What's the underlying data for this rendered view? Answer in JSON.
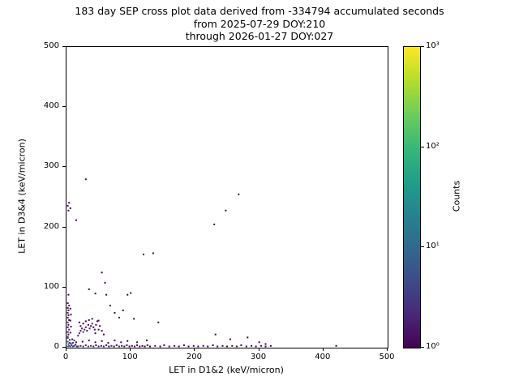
{
  "chart_data": {
    "type": "scatter",
    "title": "183 day SEP cross plot data derived from -334794 accumulated seconds",
    "subtitle1": "from 2025-07-29 DOY:210",
    "subtitle2": "through 2026-01-27 DOY:027",
    "xlabel": "LET in D1&2 (keV/micron)",
    "ylabel": "LET in D3&4 (keV/micron)",
    "xlim": [
      0,
      500
    ],
    "ylim": [
      0,
      500
    ],
    "x_ticks": [
      0,
      100,
      200,
      300,
      400,
      500
    ],
    "y_ticks": [
      0,
      100,
      200,
      300,
      400,
      500
    ],
    "grid": false,
    "colorbar": {
      "label": "Counts",
      "scale": "log",
      "range": [
        1,
        1000
      ],
      "colormap": "viridis",
      "color_bottom": "#440154",
      "color_top": "#fde725",
      "ticks": [
        {
          "label": "10⁰",
          "value": 1
        },
        {
          "label": "10¹",
          "value": 10
        },
        {
          "label": "10²",
          "value": 100
        },
        {
          "label": "10³",
          "value": 1000
        }
      ]
    },
    "points": [
      [
        2,
        2,
        8
      ],
      [
        4,
        3,
        6
      ],
      [
        6,
        2,
        5
      ],
      [
        8,
        4,
        4
      ],
      [
        3,
        6,
        5
      ],
      [
        5,
        8,
        4
      ],
      [
        2,
        10,
        3
      ],
      [
        10,
        2,
        4
      ],
      [
        12,
        3,
        3
      ],
      [
        7,
        7,
        3
      ],
      [
        10,
        8,
        2
      ],
      [
        14,
        5,
        2
      ],
      [
        5,
        13,
        2
      ],
      [
        12,
        12,
        2
      ],
      [
        15,
        9,
        1
      ],
      [
        9,
        14,
        1
      ],
      [
        16,
        2,
        2
      ],
      [
        2,
        16,
        2
      ],
      [
        2,
        18,
        2
      ],
      [
        3,
        22,
        1
      ],
      [
        2,
        26,
        1
      ],
      [
        4,
        30,
        2
      ],
      [
        2,
        34,
        1
      ],
      [
        3,
        38,
        1
      ],
      [
        2,
        42,
        2
      ],
      [
        4,
        46,
        1
      ],
      [
        2,
        50,
        1
      ],
      [
        3,
        54,
        1
      ],
      [
        2,
        58,
        2
      ],
      [
        3,
        62,
        1
      ],
      [
        2,
        66,
        1
      ],
      [
        4,
        70,
        1
      ],
      [
        2,
        74,
        1
      ],
      [
        6,
        25,
        1
      ],
      [
        7,
        35,
        1
      ],
      [
        6,
        45,
        1
      ],
      [
        7,
        55,
        1
      ],
      [
        6,
        65,
        1
      ],
      [
        3,
        88,
        1
      ],
      [
        3,
        228,
        1
      ],
      [
        6,
        232,
        1
      ],
      [
        2,
        236,
        1
      ],
      [
        4,
        241,
        1
      ],
      [
        15,
        212,
        1
      ],
      [
        30,
        280,
        1
      ],
      [
        18,
        2,
        3
      ],
      [
        22,
        3,
        2
      ],
      [
        26,
        2,
        2
      ],
      [
        30,
        4,
        2
      ],
      [
        34,
        2,
        3
      ],
      [
        38,
        3,
        2
      ],
      [
        42,
        2,
        2
      ],
      [
        46,
        4,
        1
      ],
      [
        50,
        2,
        2
      ],
      [
        54,
        3,
        1
      ],
      [
        58,
        2,
        2
      ],
      [
        62,
        4,
        1
      ],
      [
        66,
        2,
        1
      ],
      [
        70,
        3,
        2
      ],
      [
        74,
        2,
        1
      ],
      [
        78,
        4,
        1
      ],
      [
        82,
        2,
        2
      ],
      [
        86,
        3,
        1
      ],
      [
        90,
        2,
        1
      ],
      [
        94,
        4,
        1
      ],
      [
        98,
        2,
        1
      ],
      [
        102,
        3,
        1
      ],
      [
        106,
        2,
        1
      ],
      [
        110,
        4,
        1
      ],
      [
        114,
        2,
        1
      ],
      [
        118,
        3,
        1
      ],
      [
        122,
        2,
        1
      ],
      [
        126,
        4,
        1
      ],
      [
        130,
        2,
        1
      ],
      [
        138,
        3,
        1
      ],
      [
        146,
        2,
        1
      ],
      [
        152,
        4,
        1
      ],
      [
        160,
        2,
        1
      ],
      [
        168,
        3,
        1
      ],
      [
        175,
        2,
        1
      ],
      [
        183,
        4,
        1
      ],
      [
        190,
        2,
        1
      ],
      [
        198,
        3,
        1
      ],
      [
        205,
        2,
        1
      ],
      [
        213,
        3,
        1
      ],
      [
        220,
        2,
        1
      ],
      [
        228,
        4,
        1
      ],
      [
        235,
        2,
        1
      ],
      [
        243,
        3,
        1
      ],
      [
        250,
        2,
        1
      ],
      [
        258,
        3,
        1
      ],
      [
        265,
        2,
        1
      ],
      [
        272,
        4,
        1
      ],
      [
        280,
        2,
        1
      ],
      [
        288,
        3,
        1
      ],
      [
        295,
        2,
        1
      ],
      [
        303,
        3,
        1
      ],
      [
        310,
        2,
        1
      ],
      [
        318,
        3,
        1
      ],
      [
        420,
        3,
        1
      ],
      [
        232,
        22,
        1
      ],
      [
        255,
        14,
        1
      ],
      [
        282,
        17,
        1
      ],
      [
        300,
        9,
        1
      ],
      [
        310,
        6,
        1
      ],
      [
        18,
        20,
        2
      ],
      [
        20,
        24,
        2
      ],
      [
        22,
        28,
        1
      ],
      [
        24,
        32,
        2
      ],
      [
        26,
        26,
        3
      ],
      [
        28,
        30,
        2
      ],
      [
        30,
        34,
        2
      ],
      [
        32,
        28,
        1
      ],
      [
        34,
        38,
        1
      ],
      [
        36,
        32,
        2
      ],
      [
        38,
        36,
        1
      ],
      [
        40,
        40,
        2
      ],
      [
        42,
        34,
        1
      ],
      [
        44,
        30,
        1
      ],
      [
        46,
        38,
        1
      ],
      [
        48,
        44,
        1
      ],
      [
        30,
        44,
        1
      ],
      [
        26,
        40,
        1
      ],
      [
        22,
        36,
        1
      ],
      [
        20,
        42,
        1
      ],
      [
        35,
        46,
        1
      ],
      [
        40,
        48,
        1
      ],
      [
        45,
        24,
        1
      ],
      [
        50,
        30,
        1
      ],
      [
        52,
        36,
        1
      ],
      [
        55,
        28,
        1
      ],
      [
        58,
        22,
        1
      ],
      [
        50,
        45,
        1
      ],
      [
        25,
        10,
        1
      ],
      [
        35,
        12,
        1
      ],
      [
        45,
        9,
        1
      ],
      [
        55,
        11,
        1
      ],
      [
        65,
        8,
        1
      ],
      [
        75,
        12,
        1
      ],
      [
        85,
        9,
        1
      ],
      [
        95,
        11,
        1
      ],
      [
        110,
        9,
        1
      ],
      [
        125,
        12,
        1
      ],
      [
        55,
        125,
        1
      ],
      [
        60,
        108,
        1
      ],
      [
        35,
        97,
        1
      ],
      [
        45,
        90,
        1
      ],
      [
        62,
        88,
        1
      ],
      [
        88,
        62,
        1
      ],
      [
        95,
        88,
        1
      ],
      [
        100,
        91,
        1
      ],
      [
        120,
        155,
        1
      ],
      [
        135,
        157,
        1
      ],
      [
        143,
        42,
        1
      ],
      [
        105,
        48,
        1
      ],
      [
        68,
        70,
        1
      ],
      [
        75,
        58,
        1
      ],
      [
        82,
        50,
        1
      ],
      [
        230,
        205,
        1
      ],
      [
        248,
        228,
        1
      ],
      [
        268,
        255,
        1
      ]
    ]
  }
}
